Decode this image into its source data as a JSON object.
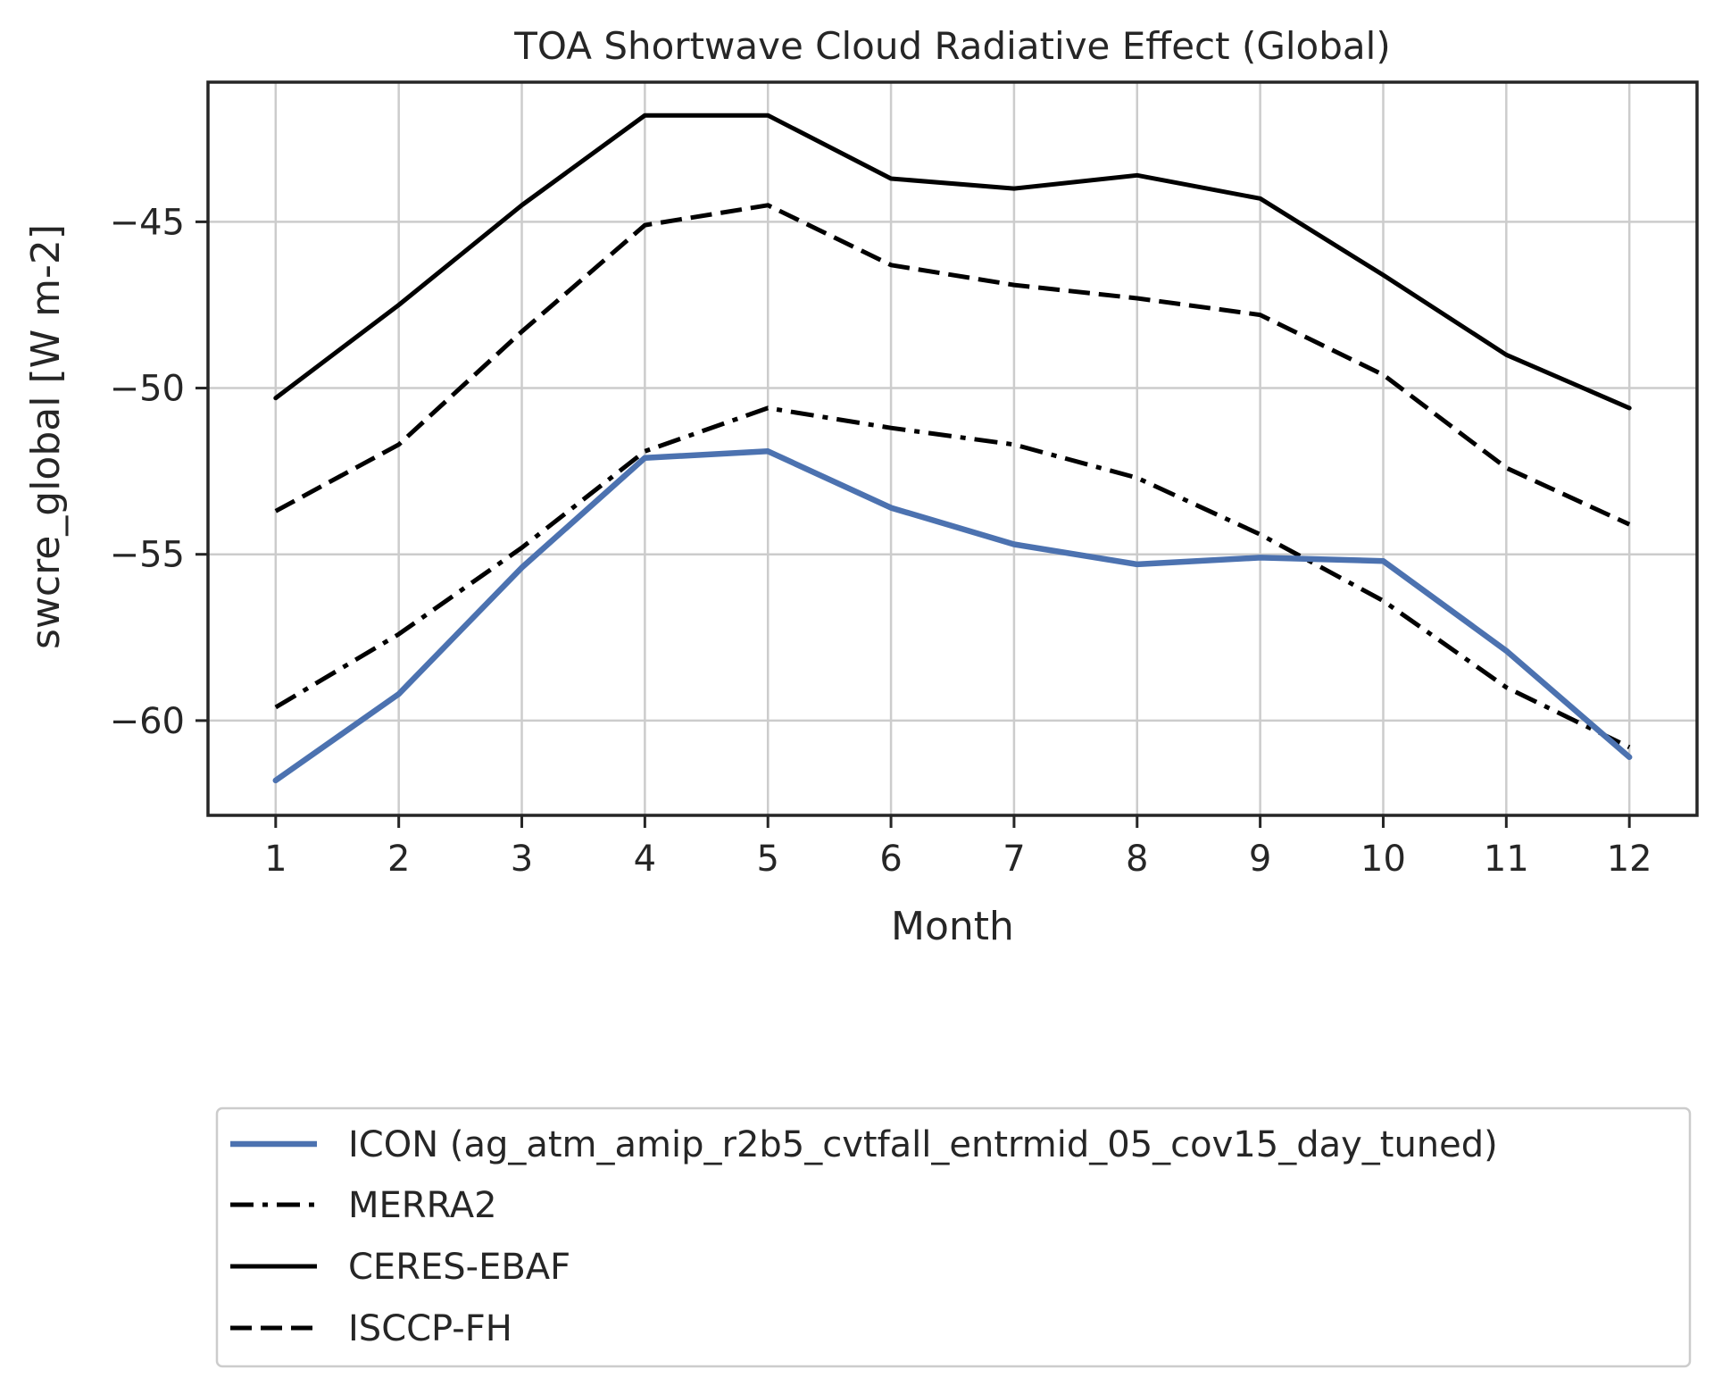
{
  "chart_data": {
    "type": "line",
    "title": "TOA Shortwave Cloud Radiative Effect (Global)",
    "xlabel": "Month",
    "ylabel": "swcre_global [W m-2]",
    "x": [
      1,
      2,
      3,
      4,
      5,
      6,
      7,
      8,
      9,
      10,
      11,
      12
    ],
    "xlim": [
      0.45,
      12.55
    ],
    "ylim": [
      -62.85,
      -40.8
    ],
    "yticks": [
      -45,
      -50,
      -55,
      -60
    ],
    "grid": true,
    "legend_position": "below plot",
    "series": [
      {
        "name": "ICON (ag_atm_amip_r2b5_cvtfall_entrmid_05_cov15_day_tuned)",
        "style": "solid",
        "color": "#4c72b0",
        "values": [
          -61.8,
          -59.2,
          -55.4,
          -52.1,
          -51.9,
          -53.6,
          -54.7,
          -55.3,
          -55.1,
          -55.2,
          -57.9,
          -61.1
        ]
      },
      {
        "name": "MERRA2",
        "style": "dashdot",
        "color": "#000000",
        "values": [
          -59.6,
          -57.4,
          -54.8,
          -51.9,
          -50.6,
          -51.2,
          -51.7,
          -52.7,
          -54.4,
          -56.4,
          -59.0,
          -60.8
        ]
      },
      {
        "name": "CERES-EBAF",
        "style": "solid",
        "color": "#000000",
        "values": [
          -50.3,
          -47.5,
          -44.5,
          -41.8,
          -41.8,
          -43.7,
          -44.0,
          -43.6,
          -44.3,
          -46.6,
          -49.0,
          -50.6
        ]
      },
      {
        "name": "ISCCP-FH",
        "style": "dashed",
        "color": "#000000",
        "values": [
          -53.7,
          -51.7,
          -48.3,
          -45.1,
          -44.5,
          -46.3,
          -46.9,
          -47.3,
          -47.8,
          -49.6,
          -52.4,
          -54.1
        ]
      }
    ]
  }
}
